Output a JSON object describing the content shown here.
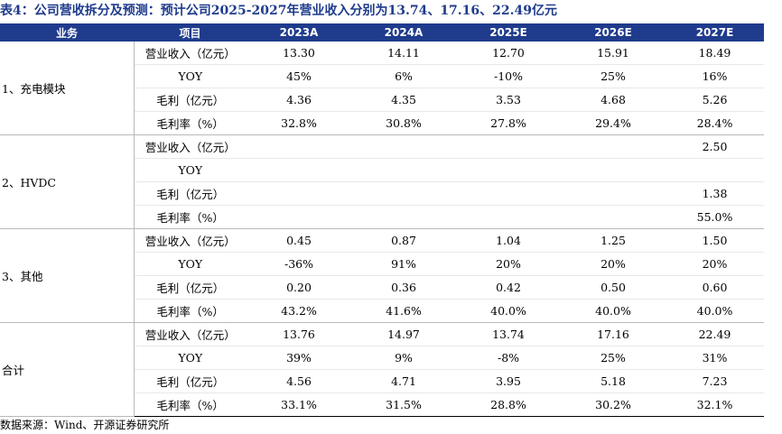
{
  "title": "表4：公司营收拆分及预测：预计公司2025-2027年营业收入分别为13.74、17.16、22.49亿元",
  "headers": [
    "业务",
    "项目",
    "2023A",
    "2024A",
    "2025E",
    "2026E",
    "2027E"
  ],
  "groups": [
    {
      "name": "1、充电模块",
      "rows": [
        {
          "item": "营业收入（亿元）",
          "values": [
            "13.30",
            "14.11",
            "12.70",
            "15.91",
            "18.49"
          ]
        },
        {
          "item": "YOY",
          "values": [
            "45%",
            "6%",
            "-10%",
            "25%",
            "16%"
          ]
        },
        {
          "item": "毛利（亿元）",
          "values": [
            "4.36",
            "4.35",
            "3.53",
            "4.68",
            "5.26"
          ]
        },
        {
          "item": "毛利率（%）",
          "values": [
            "32.8%",
            "30.8%",
            "27.8%",
            "29.4%",
            "28.4%"
          ]
        }
      ]
    },
    {
      "name": "2、HVDC",
      "rows": [
        {
          "item": "营业收入（亿元）",
          "values": [
            "",
            "",
            "",
            "",
            "2.50"
          ]
        },
        {
          "item": "YOY",
          "values": [
            "",
            "",
            "",
            "",
            ""
          ]
        },
        {
          "item": "毛利（亿元）",
          "values": [
            "",
            "",
            "",
            "",
            "1.38"
          ]
        },
        {
          "item": "毛利率（%）",
          "values": [
            "",
            "",
            "",
            "",
            "55.0%"
          ]
        }
      ]
    },
    {
      "name": "3、其他",
      "rows": [
        {
          "item": "营业收入（亿元）",
          "values": [
            "0.45",
            "0.87",
            "1.04",
            "1.25",
            "1.50"
          ]
        },
        {
          "item": "YOY",
          "values": [
            "-36%",
            "91%",
            "20%",
            "20%",
            "20%"
          ]
        },
        {
          "item": "毛利（亿元）",
          "values": [
            "0.20",
            "0.36",
            "0.42",
            "0.50",
            "0.60"
          ]
        },
        {
          "item": "毛利率（%）",
          "values": [
            "43.2%",
            "41.6%",
            "40.0%",
            "40.0%",
            "40.0%"
          ]
        }
      ]
    },
    {
      "name": "合计",
      "rows": [
        {
          "item": "营业收入（亿元）",
          "values": [
            "13.76",
            "14.97",
            "13.74",
            "17.16",
            "22.49"
          ]
        },
        {
          "item": "YOY",
          "values": [
            "39%",
            "9%",
            "-8%",
            "25%",
            "31%"
          ]
        },
        {
          "item": "毛利（亿元）",
          "values": [
            "4.56",
            "4.71",
            "3.95",
            "5.18",
            "7.23"
          ]
        },
        {
          "item": "毛利率（%）",
          "values": [
            "33.1%",
            "31.5%",
            "28.8%",
            "30.2%",
            "32.1%"
          ]
        }
      ]
    }
  ],
  "source": "数据来源：Wind、开源证券研究所",
  "colors": {
    "header_bg": "#1f3b8c",
    "title_color": "#1f3b8c"
  }
}
